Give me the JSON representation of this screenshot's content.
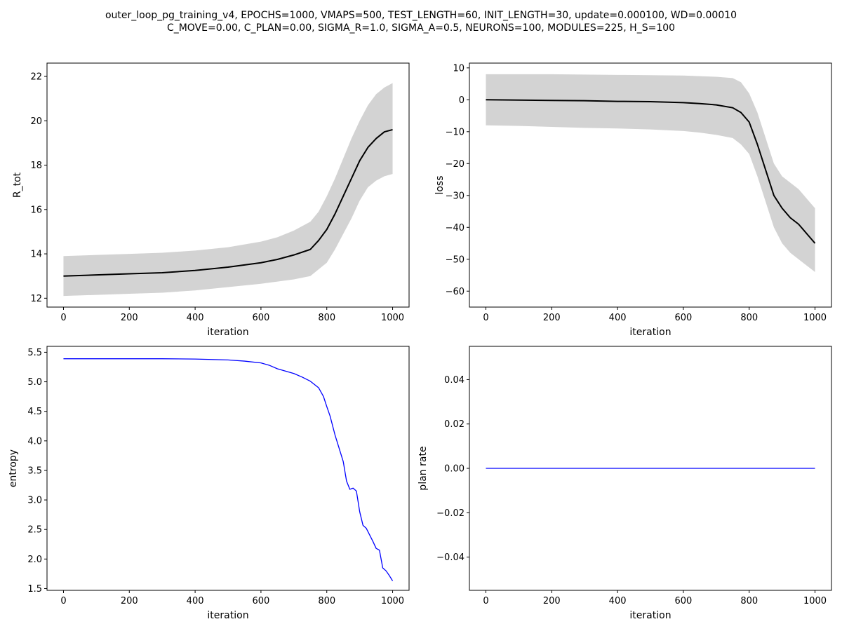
{
  "title_line1": "outer_loop_pg_training_v4, EPOCHS=1000, VMAPS=500, TEST_LENGTH=60, INIT_LENGTH=30, update=0.000100, WD=0.00010",
  "title_line2": "C_MOVE=0.00, C_PLAN=0.00, SIGMA_R=1.0, SIGMA_A=0.5, NEURONS=100, MODULES=225, H_S=100",
  "chart_data": [
    {
      "type": "line",
      "xlabel": "iteration",
      "ylabel": "R_tot",
      "xlim": [
        -50,
        1050
      ],
      "ylim": [
        11.6,
        22.6
      ],
      "xticks": [
        0,
        200,
        400,
        600,
        800,
        1000
      ],
      "yticks": [
        12,
        14,
        16,
        18,
        20,
        22
      ],
      "grid": false,
      "series": [
        {
          "color": "#000000",
          "x": [
            0,
            100,
            200,
            300,
            400,
            500,
            600,
            650,
            700,
            750,
            775,
            800,
            825,
            850,
            875,
            900,
            925,
            950,
            975,
            1000
          ],
          "y": [
            13.0,
            13.05,
            13.1,
            13.15,
            13.25,
            13.4,
            13.6,
            13.75,
            13.95,
            14.2,
            14.6,
            15.1,
            15.8,
            16.6,
            17.4,
            18.2,
            18.8,
            19.2,
            19.5,
            19.6
          ],
          "band_lower": [
            12.1,
            12.15,
            12.2,
            12.25,
            12.35,
            12.5,
            12.65,
            12.75,
            12.85,
            13.0,
            13.3,
            13.6,
            14.2,
            14.9,
            15.6,
            16.4,
            17.0,
            17.3,
            17.5,
            17.6
          ],
          "band_upper": [
            13.9,
            13.95,
            14.0,
            14.05,
            14.15,
            14.3,
            14.55,
            14.75,
            15.05,
            15.45,
            15.9,
            16.6,
            17.4,
            18.3,
            19.2,
            20.0,
            20.7,
            21.2,
            21.5,
            21.7
          ],
          "band_color": "#d3d3d3"
        }
      ]
    },
    {
      "type": "line",
      "xlabel": "iteration",
      "ylabel": "loss",
      "xlim": [
        -50,
        1050
      ],
      "ylim": [
        -65,
        11.5
      ],
      "xticks": [
        0,
        200,
        400,
        600,
        800,
        1000
      ],
      "yticks": [
        10,
        0,
        -10,
        -20,
        -30,
        -40,
        -50,
        -60
      ],
      "grid": false,
      "series": [
        {
          "color": "#000000",
          "x": [
            0,
            100,
            200,
            300,
            400,
            500,
            600,
            650,
            700,
            750,
            775,
            800,
            825,
            850,
            875,
            900,
            925,
            950,
            975,
            1000
          ],
          "y": [
            0.0,
            -0.1,
            -0.2,
            -0.3,
            -0.5,
            -0.6,
            -0.9,
            -1.2,
            -1.6,
            -2.5,
            -4.0,
            -7.0,
            -14.0,
            -22.0,
            -30.0,
            -34.0,
            -37.0,
            -39.0,
            -42.0,
            -45.0
          ],
          "band_lower": [
            -8.0,
            -8.2,
            -8.5,
            -8.8,
            -9.0,
            -9.3,
            -9.8,
            -10.3,
            -11.0,
            -12.0,
            -14.0,
            -17.0,
            -24.0,
            -32.0,
            -40.0,
            -45.0,
            -48.0,
            -50.0,
            -52.0,
            -54.0
          ],
          "band_upper": [
            8.0,
            8.0,
            8.0,
            7.9,
            7.8,
            7.7,
            7.6,
            7.4,
            7.2,
            6.8,
            5.5,
            2.0,
            -4.0,
            -12.0,
            -20.0,
            -24.0,
            -26.0,
            -28.0,
            -31.0,
            -34.0
          ],
          "band_color": "#d3d3d3"
        }
      ]
    },
    {
      "type": "line",
      "xlabel": "iteration",
      "ylabel": "entropy",
      "xlim": [
        -50,
        1050
      ],
      "ylim": [
        1.47,
        5.6
      ],
      "xticks": [
        0,
        200,
        400,
        600,
        800,
        1000
      ],
      "yticks": [
        1.5,
        2.0,
        2.5,
        3.0,
        3.5,
        4.0,
        4.5,
        5.0,
        5.5
      ],
      "grid": false,
      "series": [
        {
          "color": "#0000ff",
          "x": [
            0,
            100,
            200,
            300,
            400,
            500,
            550,
            600,
            625,
            650,
            675,
            700,
            725,
            750,
            775,
            790,
            800,
            810,
            825,
            850,
            860,
            870,
            880,
            890,
            900,
            910,
            920,
            940,
            950,
            960,
            970,
            980,
            990,
            1000
          ],
          "y": [
            5.39,
            5.39,
            5.39,
            5.39,
            5.385,
            5.37,
            5.35,
            5.32,
            5.28,
            5.22,
            5.18,
            5.14,
            5.08,
            5.01,
            4.9,
            4.75,
            4.58,
            4.42,
            4.1,
            3.65,
            3.32,
            3.18,
            3.2,
            3.15,
            2.8,
            2.57,
            2.52,
            2.3,
            2.18,
            2.15,
            1.85,
            1.8,
            1.72,
            1.63
          ]
        }
      ]
    },
    {
      "type": "line",
      "xlabel": "iteration",
      "ylabel": "plan rate",
      "xlim": [
        -50,
        1050
      ],
      "ylim": [
        -0.055,
        0.055
      ],
      "xticks": [
        0,
        200,
        400,
        600,
        800,
        1000
      ],
      "yticks": [
        0.04,
        0.02,
        0.0,
        -0.02,
        -0.04
      ],
      "ytick_labels": [
        "0.04",
        "0.02",
        "0.00",
        "−0.02",
        "−0.04"
      ],
      "grid": false,
      "series": [
        {
          "color": "#0000ff",
          "x": [
            0,
            1000
          ],
          "y": [
            0.0,
            0.0
          ]
        }
      ]
    }
  ]
}
